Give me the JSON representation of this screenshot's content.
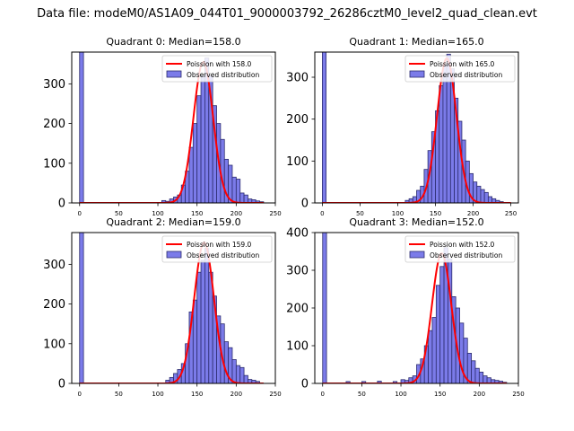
{
  "figure_title": "Data file: modeM0/AS1A09_044T01_9000003792_26286cztM0_level2_quad_clean.evt",
  "colors": {
    "hist_fill": "#7b7be9",
    "hist_edge": "#2c2c6e",
    "poisson": "#ff0000",
    "axis": "#000000"
  },
  "chart_data": [
    {
      "type": "bar",
      "title": "Quadrant 0: Median=158.0",
      "median": 158.0,
      "xlim": [
        -10,
        250
      ],
      "ylim": [
        0,
        380
      ],
      "xticks": [
        "0",
        "50",
        "100",
        "150",
        "200",
        "250"
      ],
      "yticks": [
        "0",
        "100",
        "200",
        "300"
      ],
      "legend": {
        "line": "Poission with 158.0",
        "bars": "Observed distribution",
        "position": "top-right"
      },
      "bin_width": 5,
      "bins": [
        [
          0,
          380
        ],
        [
          105,
          6
        ],
        [
          110,
          4
        ],
        [
          115,
          10
        ],
        [
          120,
          15
        ],
        [
          125,
          20
        ],
        [
          130,
          45
        ],
        [
          135,
          80
        ],
        [
          140,
          140
        ],
        [
          145,
          200
        ],
        [
          150,
          270
        ],
        [
          155,
          320
        ],
        [
          160,
          365
        ],
        [
          165,
          320
        ],
        [
          170,
          245
        ],
        [
          175,
          200
        ],
        [
          180,
          160
        ],
        [
          185,
          110
        ],
        [
          190,
          95
        ],
        [
          195,
          65
        ],
        [
          200,
          60
        ],
        [
          205,
          25
        ],
        [
          210,
          20
        ],
        [
          215,
          10
        ],
        [
          220,
          8
        ],
        [
          225,
          5
        ],
        [
          230,
          3
        ]
      ],
      "poisson": {
        "mean": 158.0,
        "peak": 355,
        "x_start": 0,
        "x_end": 235
      }
    },
    {
      "type": "bar",
      "title": "Quadrant 1: Median=165.0",
      "median": 165.0,
      "xlim": [
        -10,
        260
      ],
      "ylim": [
        0,
        360
      ],
      "xticks": [
        "0",
        "50",
        "100",
        "150",
        "200",
        "250"
      ],
      "yticks": [
        "0",
        "100",
        "200",
        "300"
      ],
      "legend": {
        "line": "Poission with 165.0",
        "bars": "Observed distribution",
        "position": "top-right"
      },
      "bin_width": 5,
      "bins": [
        [
          0,
          360
        ],
        [
          110,
          6
        ],
        [
          115,
          10
        ],
        [
          120,
          15
        ],
        [
          125,
          30
        ],
        [
          130,
          40
        ],
        [
          135,
          80
        ],
        [
          140,
          125
        ],
        [
          145,
          170
        ],
        [
          150,
          220
        ],
        [
          155,
          280
        ],
        [
          160,
          330
        ],
        [
          165,
          355
        ],
        [
          170,
          320
        ],
        [
          175,
          250
        ],
        [
          180,
          195
        ],
        [
          185,
          150
        ],
        [
          190,
          100
        ],
        [
          195,
          70
        ],
        [
          200,
          50
        ],
        [
          205,
          40
        ],
        [
          210,
          32
        ],
        [
          215,
          25
        ],
        [
          220,
          15
        ],
        [
          225,
          10
        ],
        [
          230,
          6
        ],
        [
          235,
          3
        ]
      ],
      "poisson": {
        "mean": 165.0,
        "peak": 345,
        "x_start": 0,
        "x_end": 250
      }
    },
    {
      "type": "bar",
      "title": "Quadrant 2: Median=159.0",
      "median": 159.0,
      "xlim": [
        -10,
        250
      ],
      "ylim": [
        0,
        380
      ],
      "xticks": [
        "0",
        "50",
        "100",
        "150",
        "200",
        "250"
      ],
      "yticks": [
        "0",
        "100",
        "200",
        "300"
      ],
      "legend": {
        "line": "Poission with 159.0",
        "bars": "Observed distribution",
        "position": "top-right"
      },
      "bin_width": 5,
      "bins": [
        [
          0,
          380
        ],
        [
          110,
          8
        ],
        [
          115,
          15
        ],
        [
          120,
          25
        ],
        [
          125,
          35
        ],
        [
          130,
          50
        ],
        [
          135,
          100
        ],
        [
          140,
          180
        ],
        [
          145,
          210
        ],
        [
          150,
          280
        ],
        [
          155,
          310
        ],
        [
          160,
          340
        ],
        [
          165,
          280
        ],
        [
          170,
          220
        ],
        [
          175,
          170
        ],
        [
          180,
          150
        ],
        [
          185,
          105
        ],
        [
          190,
          90
        ],
        [
          195,
          60
        ],
        [
          200,
          45
        ],
        [
          205,
          40
        ],
        [
          210,
          20
        ],
        [
          215,
          10
        ],
        [
          220,
          8
        ],
        [
          225,
          5
        ]
      ],
      "poisson": {
        "mean": 159.0,
        "peak": 355,
        "x_start": 0,
        "x_end": 235
      }
    },
    {
      "type": "bar",
      "title": "Quadrant 3: Median=152.0",
      "median": 152.0,
      "xlim": [
        -10,
        250
      ],
      "ylim": [
        0,
        400
      ],
      "xticks": [
        "0",
        "50",
        "100",
        "150",
        "200",
        "250"
      ],
      "yticks": [
        "0",
        "100",
        "200",
        "300",
        "400"
      ],
      "legend": {
        "line": "Poission with 152.0",
        "bars": "Observed distribution",
        "position": "top-right"
      },
      "bin_width": 5,
      "bins": [
        [
          0,
          400
        ],
        [
          30,
          5
        ],
        [
          50,
          5
        ],
        [
          70,
          6
        ],
        [
          90,
          5
        ],
        [
          100,
          10
        ],
        [
          105,
          8
        ],
        [
          110,
          15
        ],
        [
          115,
          20
        ],
        [
          120,
          50
        ],
        [
          125,
          65
        ],
        [
          130,
          100
        ],
        [
          135,
          140
        ],
        [
          140,
          175
        ],
        [
          145,
          260
        ],
        [
          150,
          310
        ],
        [
          155,
          360
        ],
        [
          160,
          330
        ],
        [
          165,
          230
        ],
        [
          170,
          200
        ],
        [
          175,
          160
        ],
        [
          180,
          120
        ],
        [
          185,
          80
        ],
        [
          190,
          60
        ],
        [
          195,
          40
        ],
        [
          200,
          30
        ],
        [
          205,
          20
        ],
        [
          210,
          15
        ],
        [
          215,
          10
        ],
        [
          220,
          8
        ],
        [
          225,
          6
        ],
        [
          230,
          3
        ]
      ],
      "poisson": {
        "mean": 152.0,
        "peak": 345,
        "x_start": 0,
        "x_end": 235
      }
    }
  ]
}
